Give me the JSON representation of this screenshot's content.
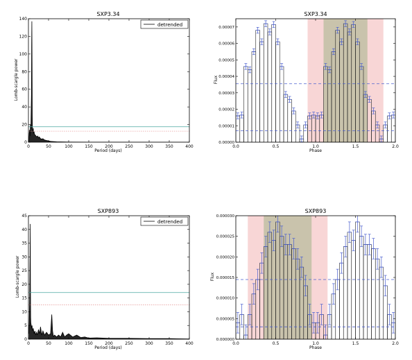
{
  "chart_data": [
    {
      "type": "line",
      "title": "SXP3.34",
      "xlabel": "Period (days)",
      "ylabel": "Lomb-scargle power",
      "xlim": [
        0,
        400
      ],
      "ylim": [
        0,
        140
      ],
      "xticks": [
        0,
        50,
        100,
        150,
        200,
        250,
        300,
        350,
        400
      ],
      "yticks": [
        0,
        20,
        40,
        60,
        80,
        100,
        120,
        140
      ],
      "grid": false,
      "legend_position": "top-right",
      "series": [
        {
          "name": "detrended",
          "color": "#000000",
          "x": [
            1,
            2,
            3,
            4,
            5,
            6,
            7,
            7.5,
            8,
            8.5,
            9,
            9.5,
            10,
            11,
            12,
            13,
            14,
            15,
            17,
            19,
            21,
            23,
            25,
            27,
            30,
            33,
            36,
            40,
            45,
            50,
            55,
            60,
            70,
            80,
            100,
            150,
            200,
            300,
            400
          ],
          "y": [
            0,
            10,
            14,
            7,
            20,
            15,
            42,
            55,
            110,
            137,
            90,
            30,
            14,
            12,
            16,
            10,
            12,
            9,
            8,
            7,
            6,
            7,
            5,
            6,
            4,
            3.5,
            4,
            2.5,
            2,
            1.5,
            1,
            0.8,
            0.5,
            0.4,
            0.2,
            0.1,
            0.05,
            0.02,
            0
          ]
        }
      ],
      "threshold_lines": [
        {
          "value": 17.5,
          "color": "#4aa6a0",
          "style": "solid"
        },
        {
          "value": 12.5,
          "color": "#e8a0a0",
          "style": "dotted"
        }
      ]
    },
    {
      "type": "bar",
      "title": "SXP3.34",
      "xlabel": "Phase",
      "ylabel": "Flux",
      "xlim": [
        0,
        2
      ],
      "ylim": [
        0,
        7.5e-05
      ],
      "xticks": [
        0,
        0.5,
        1.0,
        1.5,
        2.0
      ],
      "xtick_labels": [
        "0.0",
        "0.5",
        "1.0",
        "1.5",
        "2.0"
      ],
      "yticks": [
        0,
        1e-05,
        2e-05,
        3e-05,
        4e-05,
        5e-05,
        6e-05,
        7e-05
      ],
      "ytick_labels": [
        "0.00000",
        "0.00001",
        "0.00002",
        "0.00003",
        "0.00004",
        "0.00005",
        "0.00006",
        "0.00007"
      ],
      "bin_width": 0.05,
      "values": [
        1.6e-05,
        1.65e-05,
        4.6e-05,
        4.4e-05,
        5.5e-05,
        6.8e-05,
        6.1e-05,
        7.2e-05,
        6.7e-05,
        7.15e-05,
        6.1e-05,
        4.6e-05,
        2.9e-05,
        2.6e-05,
        1.9e-05,
        1.05e-05,
        2e-06,
        1.05e-05,
        1.6e-05,
        1.65e-05
      ],
      "error": [
        1.8e-06,
        1.8e-06,
        1.8e-06,
        1.8e-06,
        1.8e-06,
        1.8e-06,
        1.8e-06,
        1.8e-06,
        1.8e-06,
        1.8e-06,
        1.8e-06,
        1.8e-06,
        1.8e-06,
        1.8e-06,
        1.8e-06,
        1.8e-06,
        1.8e-06,
        1.8e-06,
        1.8e-06,
        1.8e-06
      ],
      "hlines": [
        {
          "value": 3.55e-05,
          "color": "#4a5fcf",
          "style": "dashed"
        },
        {
          "value": 7e-06,
          "color": "#4a5fcf",
          "style": "dashed"
        }
      ],
      "spans": [
        {
          "from": 0.9,
          "to": 1.85,
          "color": "#f8d6d6"
        },
        {
          "from": 1.1,
          "to": 1.65,
          "color": "#c9c3ac"
        }
      ]
    },
    {
      "type": "line",
      "title": "SXP893",
      "xlabel": "Period (days)",
      "ylabel": "Lomb-scargle power",
      "xlim": [
        0,
        400
      ],
      "ylim": [
        0,
        45
      ],
      "xticks": [
        0,
        50,
        100,
        150,
        200,
        250,
        300,
        350,
        400
      ],
      "yticks": [
        0,
        5,
        10,
        15,
        20,
        25,
        30,
        35,
        40,
        45
      ],
      "grid": false,
      "legend_position": "top-right",
      "series": [
        {
          "name": "detrended",
          "color": "#000000",
          "x": [
            1,
            2,
            3,
            4,
            4.5,
            5,
            5.5,
            6,
            7,
            8,
            9,
            10,
            12,
            14,
            16,
            18,
            20,
            22,
            25,
            28,
            30,
            33,
            36,
            40,
            45,
            50,
            55,
            58,
            60,
            62,
            65,
            70,
            75,
            80,
            85,
            90,
            95,
            100,
            110,
            120,
            130,
            140,
            150,
            170,
            200,
            250,
            300,
            350,
            400
          ],
          "y": [
            2,
            6,
            15,
            30,
            42,
            20,
            8,
            6,
            5,
            4,
            5,
            3,
            4,
            2,
            3,
            1.5,
            2.5,
            1.5,
            3.5,
            2,
            4.5,
            1.5,
            3,
            1.5,
            2.5,
            1.5,
            2,
            9,
            3,
            1,
            1.5,
            0.8,
            1.5,
            0.8,
            2.5,
            0.8,
            1.5,
            2,
            0.8,
            1.5,
            0.6,
            0.8,
            0.4,
            0.5,
            0.3,
            0.3,
            0.2,
            0.2,
            0.1
          ]
        }
      ],
      "threshold_lines": [
        {
          "value": 17,
          "color": "#4aa6a0",
          "style": "solid"
        },
        {
          "value": 12.5,
          "color": "#e8a0a0",
          "style": "dotted"
        }
      ]
    },
    {
      "type": "bar",
      "title": "SXP893",
      "xlabel": "Phase",
      "ylabel": "Flux",
      "xlim": [
        0,
        2
      ],
      "ylim": [
        0,
        3e-05
      ],
      "xticks": [
        0,
        0.5,
        1.0,
        1.5,
        2.0
      ],
      "xtick_labels": [
        "0.0",
        "0.5",
        "1.0",
        "1.5",
        "2.0"
      ],
      "yticks": [
        0,
        5e-06,
        1e-05,
        1.5e-05,
        2e-05,
        2.5e-05,
        3e-05
      ],
      "ytick_labels": [
        "0.000000",
        "0.000005",
        "0.000010",
        "0.000015",
        "0.000020",
        "0.000025",
        "0.000030"
      ],
      "bin_width": 0.05,
      "values": [
        4e-06,
        6e-06,
        1e-06,
        6e-06,
        1.1e-05,
        1.45e-05,
        1.85e-05,
        2.25e-05,
        2.6e-05,
        2.4e-05,
        2.85e-05,
        2.5e-05,
        2.3e-05,
        2.3e-05,
        2.2e-05,
        1.95e-05,
        1.75e-05,
        1.3e-05,
        6e-06,
        4e-06
      ],
      "error": [
        2.5e-06,
        2.5e-06,
        2.5e-06,
        2.5e-06,
        2.5e-06,
        2.5e-06,
        2.5e-06,
        2.5e-06,
        2.5e-06,
        2.5e-06,
        2.5e-06,
        2.5e-06,
        2.5e-06,
        2.5e-06,
        2.5e-06,
        2.5e-06,
        2.5e-06,
        2.5e-06,
        2.5e-06,
        2.5e-06
      ],
      "hlines": [
        {
          "value": 1.45e-05,
          "color": "#4a5fcf",
          "style": "dashed"
        },
        {
          "value": 3e-06,
          "color": "#4a5fcf",
          "style": "dashed"
        }
      ],
      "spans": [
        {
          "from": 0.15,
          "to": 1.15,
          "color": "#f8d6d6"
        },
        {
          "from": 0.35,
          "to": 0.95,
          "color": "#c9c3ac"
        }
      ]
    }
  ]
}
